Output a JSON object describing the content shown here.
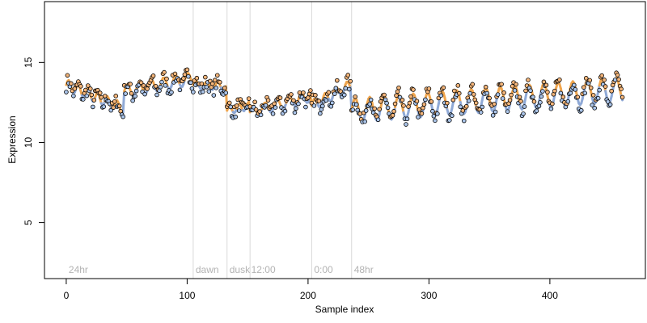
{
  "chart_data": {
    "type": "scatter",
    "title": "",
    "xlabel": "Sample index",
    "ylabel": "Expression",
    "xlim": [
      -18,
      479
    ],
    "ylim": [
      1.5,
      18.8
    ],
    "x_ticks": [
      0,
      100,
      200,
      300,
      400
    ],
    "y_ticks": [
      5,
      10,
      15
    ],
    "grid": false,
    "legend": "none",
    "colors": {
      "points_edge": "#000000",
      "fill_high": "#f4b57a",
      "fill_low": "#a9c3e8",
      "fit_high": "#f0a64f",
      "fit_low": "#8fa9d6",
      "separator": "#d9d9d9",
      "phase_label": "#b3b3b3"
    },
    "phase_boundaries": [
      105,
      133,
      152,
      203,
      236
    ],
    "phase_labels": [
      {
        "text": "24hr",
        "x": 2
      },
      {
        "text": "dawn",
        "x": 107
      },
      {
        "text": "dusk",
        "x": 135
      },
      {
        "text": "12:00",
        "x": 153
      },
      {
        "text": "0:00",
        "x": 205
      },
      {
        "text": "48hr",
        "x": 238
      }
    ],
    "segments": [
      {
        "x0": 0,
        "x1": 48,
        "y0": 13.6,
        "y1": 12.1,
        "amp": 0.35,
        "period": 8
      },
      {
        "x0": 48,
        "x1": 105,
        "y0": 13.2,
        "y1": 14.0,
        "amp": 0.4,
        "period": 10
      },
      {
        "x0": 105,
        "x1": 133,
        "y0": 13.6,
        "y1": 13.5,
        "amp": 0.25,
        "period": 9
      },
      {
        "x0": 133,
        "x1": 152,
        "y0": 12.0,
        "y1": 12.3,
        "amp": 0.25,
        "period": 8
      },
      {
        "x0": 152,
        "x1": 203,
        "y0": 11.9,
        "y1": 12.9,
        "amp": 0.35,
        "period": 10
      },
      {
        "x0": 203,
        "x1": 236,
        "y0": 12.3,
        "y1": 13.6,
        "amp": 0.35,
        "period": 9
      },
      {
        "x0": 236,
        "x1": 460,
        "y0": 12.0,
        "y1": 13.3,
        "amp": 0.75,
        "period": 12
      }
    ]
  }
}
